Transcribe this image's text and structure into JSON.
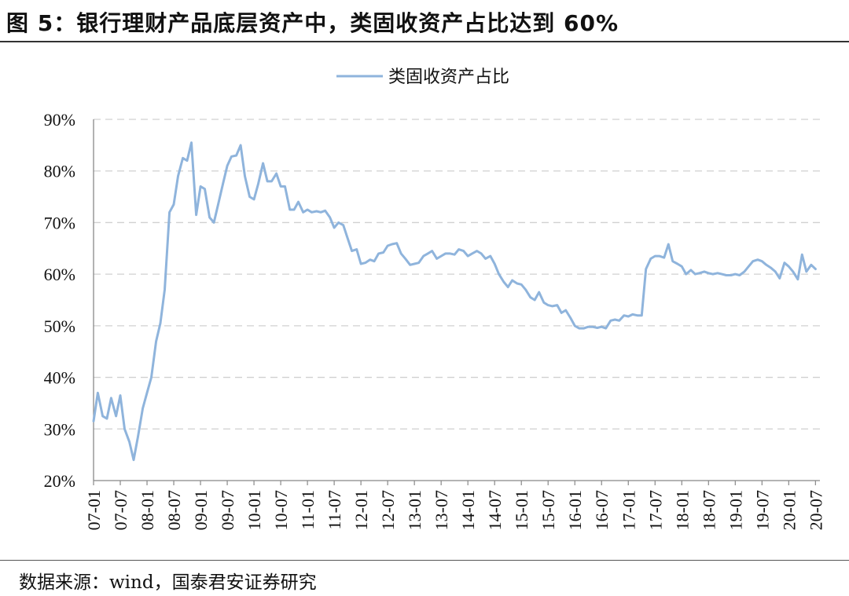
{
  "figure": {
    "title": "图 5：银行理财产品底层资产中，类固收资产占比达到 60%",
    "source": "数据来源：wind，国泰君安证券研究"
  },
  "colors": {
    "line": "#8fb4dc",
    "grid": "#d0d0d0",
    "axis": "#888888"
  },
  "chart_data": {
    "type": "line",
    "title": "",
    "xlabel": "",
    "ylabel": "",
    "legend_position": "top-center",
    "grid": true,
    "ylim": [
      20,
      90
    ],
    "yticks": [
      20,
      30,
      40,
      50,
      60,
      70,
      80,
      90
    ],
    "yticklabels": [
      "20%",
      "30%",
      "40%",
      "50%",
      "60%",
      "70%",
      "80%",
      "90%"
    ],
    "xlim": [
      2007.0,
      2020.583
    ],
    "xticks": [
      2007.0,
      2007.5,
      2008.0,
      2008.5,
      2009.0,
      2009.5,
      2010.0,
      2010.5,
      2011.0,
      2011.5,
      2012.0,
      2012.5,
      2013.0,
      2013.5,
      2014.0,
      2014.5,
      2015.0,
      2015.5,
      2016.0,
      2016.5,
      2017.0,
      2017.5,
      2018.0,
      2018.5,
      2019.0,
      2019.5,
      2020.0,
      2020.5
    ],
    "xticklabels": [
      "07-01",
      "07-07",
      "08-01",
      "08-07",
      "09-01",
      "09-07",
      "10-01",
      "10-07",
      "11-01",
      "11-07",
      "12-01",
      "12-07",
      "13-01",
      "13-07",
      "14-01",
      "14-07",
      "15-01",
      "15-07",
      "16-01",
      "16-07",
      "17-01",
      "17-07",
      "18-01",
      "18-07",
      "19-01",
      "19-07",
      "20-01",
      "20-07"
    ],
    "series": [
      {
        "name": "类固收资产占比",
        "points": [
          [
            2007.0,
            31.5
          ],
          [
            2007.08,
            37.0
          ],
          [
            2007.17,
            32.5
          ],
          [
            2007.25,
            32.0
          ],
          [
            2007.33,
            36.0
          ],
          [
            2007.42,
            32.5
          ],
          [
            2007.5,
            36.5
          ],
          [
            2007.58,
            30.0
          ],
          [
            2007.67,
            27.5
          ],
          [
            2007.75,
            24.0
          ],
          [
            2007.83,
            28.5
          ],
          [
            2007.92,
            34.0
          ],
          [
            2008.0,
            37.0
          ],
          [
            2008.08,
            40.0
          ],
          [
            2008.17,
            47.0
          ],
          [
            2008.25,
            50.5
          ],
          [
            2008.33,
            57.0
          ],
          [
            2008.42,
            72.0
          ],
          [
            2008.5,
            73.5
          ],
          [
            2008.58,
            79.0
          ],
          [
            2008.67,
            82.5
          ],
          [
            2008.75,
            82.0
          ],
          [
            2008.83,
            85.5
          ],
          [
            2008.92,
            71.5
          ],
          [
            2009.0,
            77.0
          ],
          [
            2009.08,
            76.5
          ],
          [
            2009.17,
            71.0
          ],
          [
            2009.25,
            70.0
          ],
          [
            2009.33,
            73.5
          ],
          [
            2009.42,
            77.5
          ],
          [
            2009.5,
            81.0
          ],
          [
            2009.58,
            82.8
          ],
          [
            2009.67,
            83.0
          ],
          [
            2009.75,
            85.0
          ],
          [
            2009.83,
            79.0
          ],
          [
            2009.92,
            75.0
          ],
          [
            2010.0,
            74.5
          ],
          [
            2010.08,
            77.5
          ],
          [
            2010.17,
            81.5
          ],
          [
            2010.25,
            78.0
          ],
          [
            2010.33,
            78.0
          ],
          [
            2010.42,
            79.5
          ],
          [
            2010.5,
            77.0
          ],
          [
            2010.58,
            77.0
          ],
          [
            2010.67,
            72.5
          ],
          [
            2010.75,
            72.5
          ],
          [
            2010.83,
            74.0
          ],
          [
            2010.92,
            72.0
          ],
          [
            2011.0,
            72.5
          ],
          [
            2011.08,
            72.0
          ],
          [
            2011.17,
            72.2
          ],
          [
            2011.25,
            72.0
          ],
          [
            2011.33,
            72.3
          ],
          [
            2011.42,
            71.0
          ],
          [
            2011.5,
            69.0
          ],
          [
            2011.58,
            70.0
          ],
          [
            2011.67,
            69.5
          ],
          [
            2011.75,
            67.0
          ],
          [
            2011.83,
            64.5
          ],
          [
            2011.92,
            64.8
          ],
          [
            2012.0,
            62.0
          ],
          [
            2012.08,
            62.2
          ],
          [
            2012.17,
            62.8
          ],
          [
            2012.25,
            62.5
          ],
          [
            2012.33,
            64.0
          ],
          [
            2012.42,
            64.2
          ],
          [
            2012.5,
            65.5
          ],
          [
            2012.58,
            65.8
          ],
          [
            2012.67,
            66.0
          ],
          [
            2012.75,
            64.0
          ],
          [
            2012.83,
            63.0
          ],
          [
            2012.92,
            61.8
          ],
          [
            2013.0,
            62.0
          ],
          [
            2013.08,
            62.2
          ],
          [
            2013.17,
            63.5
          ],
          [
            2013.25,
            64.0
          ],
          [
            2013.33,
            64.5
          ],
          [
            2013.42,
            63.0
          ],
          [
            2013.5,
            63.5
          ],
          [
            2013.58,
            64.0
          ],
          [
            2013.67,
            64.0
          ],
          [
            2013.75,
            63.8
          ],
          [
            2013.83,
            64.8
          ],
          [
            2013.92,
            64.5
          ],
          [
            2014.0,
            63.5
          ],
          [
            2014.08,
            64.0
          ],
          [
            2014.17,
            64.5
          ],
          [
            2014.25,
            64.0
          ],
          [
            2014.33,
            63.0
          ],
          [
            2014.42,
            63.5
          ],
          [
            2014.5,
            62.0
          ],
          [
            2014.58,
            60.0
          ],
          [
            2014.67,
            58.5
          ],
          [
            2014.75,
            57.5
          ],
          [
            2014.83,
            58.8
          ],
          [
            2014.92,
            58.2
          ],
          [
            2015.0,
            58.0
          ],
          [
            2015.08,
            57.0
          ],
          [
            2015.17,
            55.5
          ],
          [
            2015.25,
            55.0
          ],
          [
            2015.33,
            56.5
          ],
          [
            2015.42,
            54.5
          ],
          [
            2015.5,
            54.0
          ],
          [
            2015.58,
            53.8
          ],
          [
            2015.67,
            54.0
          ],
          [
            2015.75,
            52.5
          ],
          [
            2015.83,
            53.0
          ],
          [
            2015.92,
            51.5
          ],
          [
            2016.0,
            50.0
          ],
          [
            2016.08,
            49.5
          ],
          [
            2016.17,
            49.5
          ],
          [
            2016.25,
            49.8
          ],
          [
            2016.33,
            49.8
          ],
          [
            2016.42,
            49.6
          ],
          [
            2016.5,
            49.8
          ],
          [
            2016.58,
            49.5
          ],
          [
            2016.67,
            51.0
          ],
          [
            2016.75,
            51.2
          ],
          [
            2016.83,
            51.0
          ],
          [
            2016.92,
            52.0
          ],
          [
            2017.0,
            51.8
          ],
          [
            2017.08,
            52.2
          ],
          [
            2017.17,
            52.0
          ],
          [
            2017.25,
            52.0
          ],
          [
            2017.33,
            61.0
          ],
          [
            2017.42,
            63.0
          ],
          [
            2017.5,
            63.5
          ],
          [
            2017.58,
            63.5
          ],
          [
            2017.67,
            63.2
          ],
          [
            2017.75,
            65.8
          ],
          [
            2017.83,
            62.5
          ],
          [
            2017.92,
            62.0
          ],
          [
            2018.0,
            61.5
          ],
          [
            2018.08,
            60.0
          ],
          [
            2018.17,
            60.8
          ],
          [
            2018.25,
            60.0
          ],
          [
            2018.33,
            60.2
          ],
          [
            2018.42,
            60.5
          ],
          [
            2018.5,
            60.2
          ],
          [
            2018.58,
            60.0
          ],
          [
            2018.67,
            60.2
          ],
          [
            2018.75,
            60.0
          ],
          [
            2018.83,
            59.8
          ],
          [
            2018.92,
            59.8
          ],
          [
            2019.0,
            60.0
          ],
          [
            2019.08,
            59.8
          ],
          [
            2019.17,
            60.5
          ],
          [
            2019.25,
            61.5
          ],
          [
            2019.33,
            62.5
          ],
          [
            2019.42,
            62.8
          ],
          [
            2019.5,
            62.5
          ],
          [
            2019.58,
            61.8
          ],
          [
            2019.67,
            61.2
          ],
          [
            2019.75,
            60.5
          ],
          [
            2019.83,
            59.2
          ],
          [
            2019.92,
            62.2
          ],
          [
            2020.0,
            61.5
          ],
          [
            2020.08,
            60.5
          ],
          [
            2020.17,
            59.0
          ],
          [
            2020.25,
            63.8
          ],
          [
            2020.33,
            60.5
          ],
          [
            2020.42,
            61.8
          ],
          [
            2020.5,
            61.0
          ]
        ]
      }
    ]
  }
}
